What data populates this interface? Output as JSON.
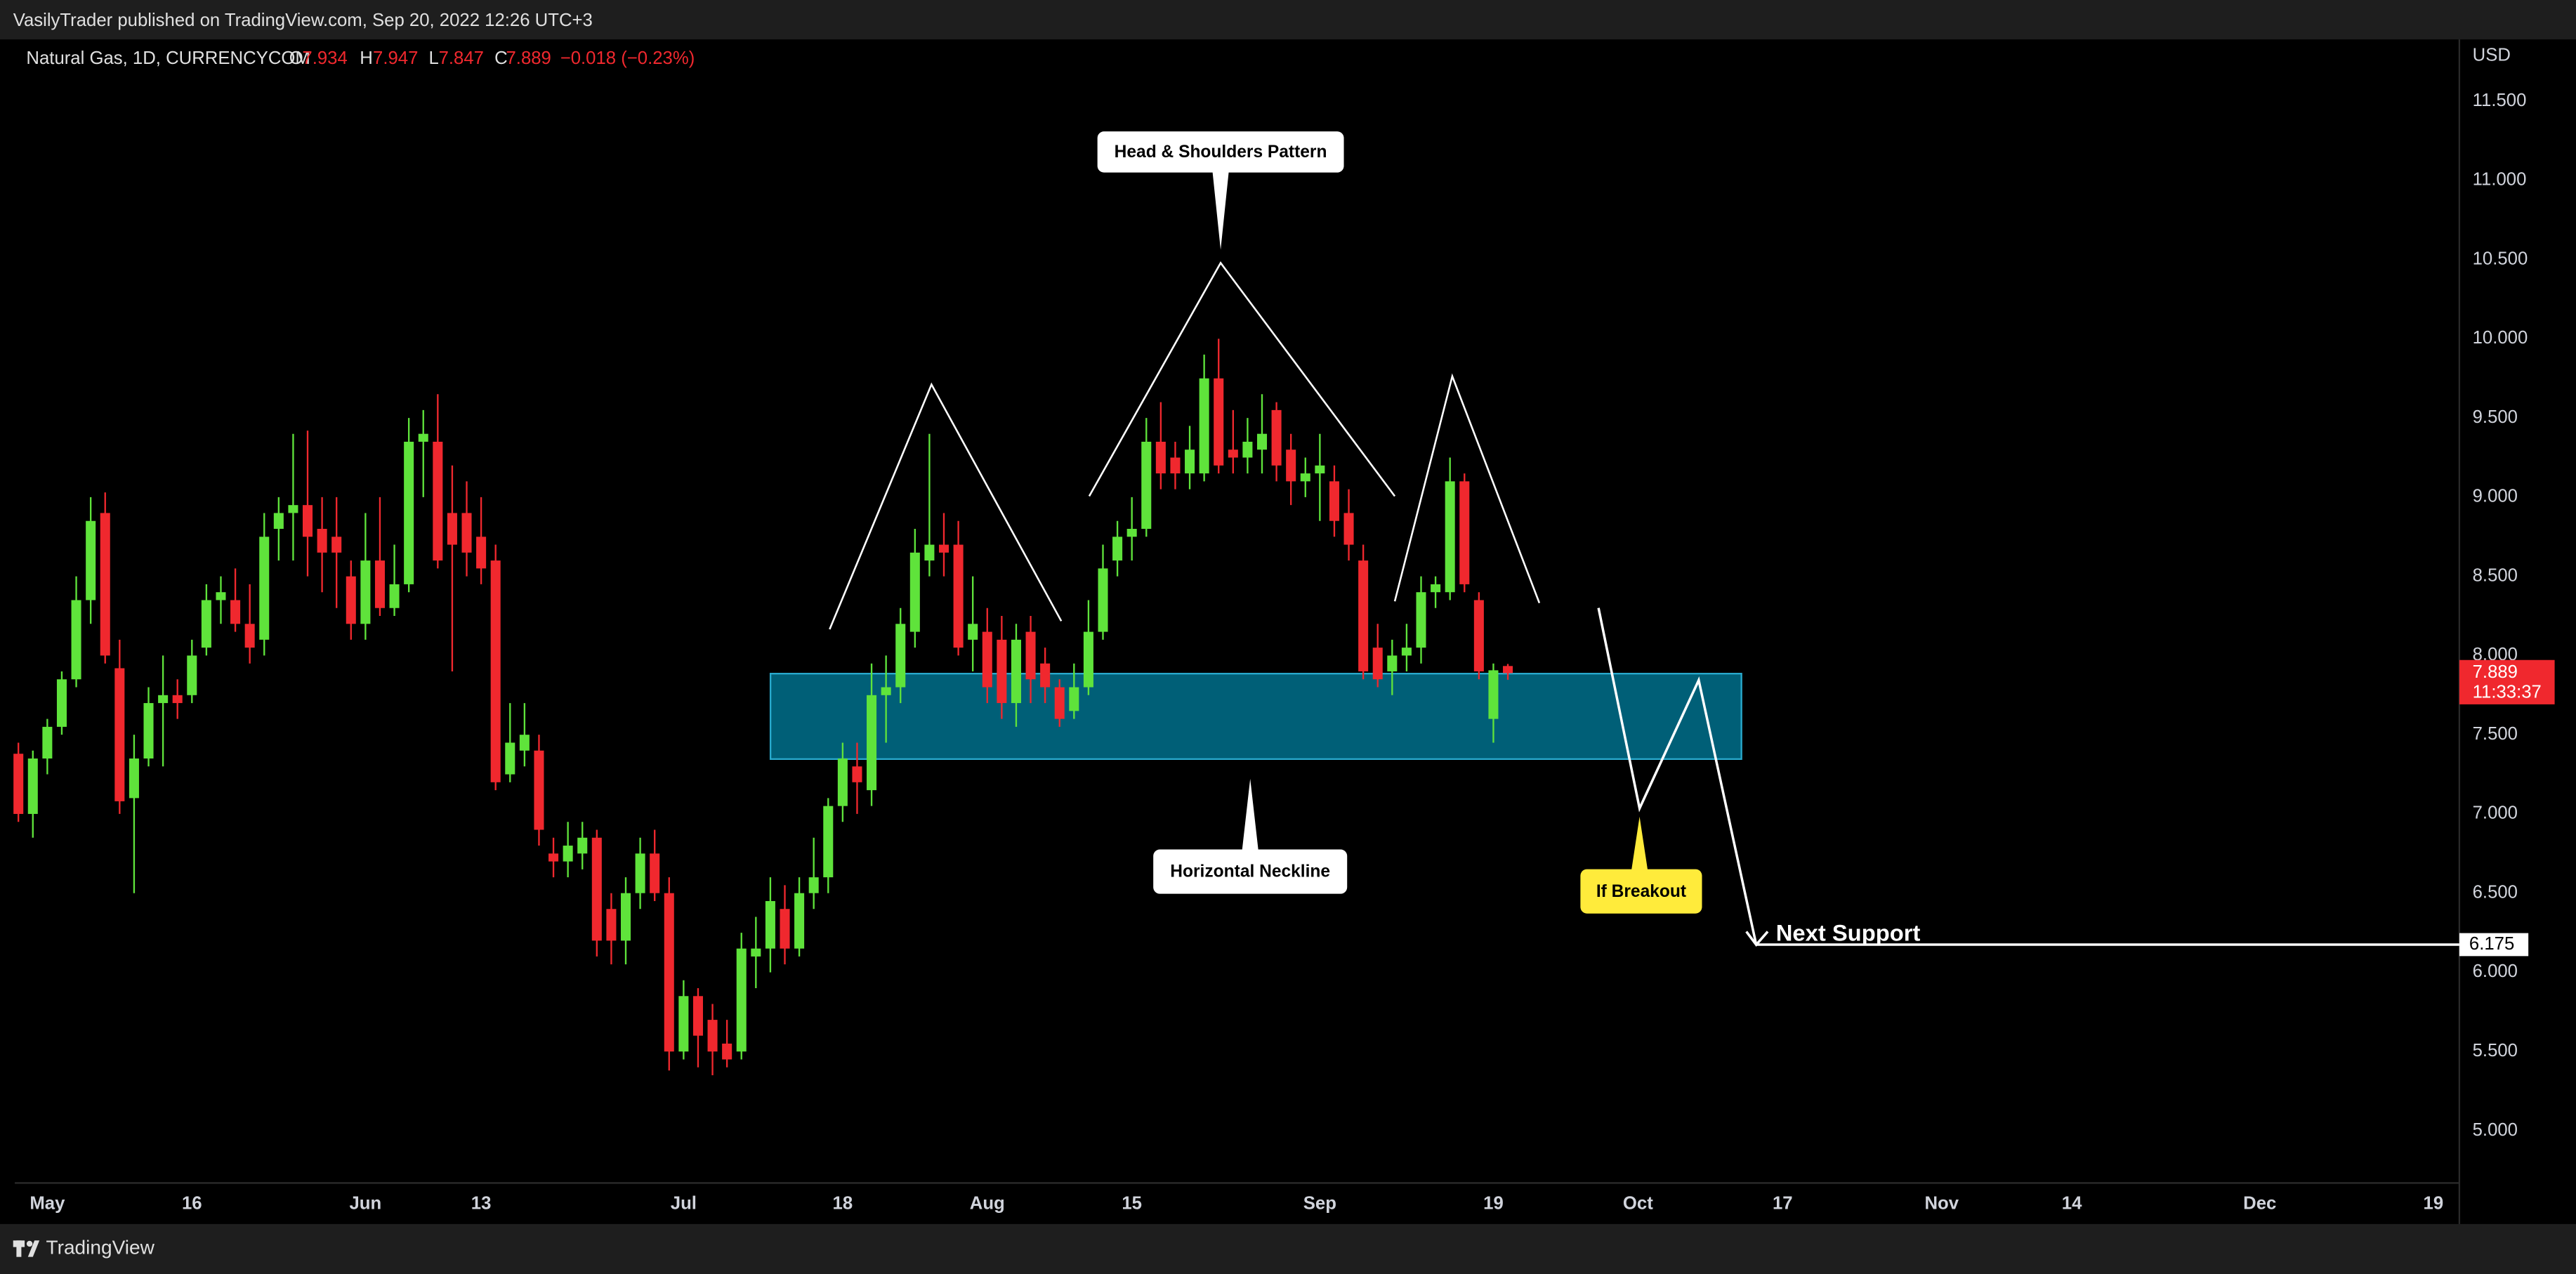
{
  "header": "VasilyTrader published on TradingView.com, Sep 20, 2022 12:26 UTC+3",
  "footer": "TradingView",
  "chart_data": {
    "type": "candlestick",
    "title": "Natural Gas, 1D, CURRENCYCOM",
    "ohlc_labels": [
      "O",
      "H",
      "L",
      "C"
    ],
    "change": "−0.018 (−0.23%)",
    "y_axis_label": "USD",
    "countdown": "11:33:37",
    "up_color": "#5fe33b",
    "down_color": "#f0282e",
    "annotations": {
      "pattern": "Head & Shoulders Pattern",
      "neckline": "Horizontal Neckline",
      "breakout": "If Breakout"
    },
    "support": {
      "label": "Next Support",
      "value": 6.175
    },
    "xlim": [
      -0.25,
      168.8
    ],
    "xticks": [
      {
        "value": 2,
        "label": "May"
      },
      {
        "value": 12,
        "label": "16"
      },
      {
        "value": 24,
        "label": "Jun"
      },
      {
        "value": 32,
        "label": "13"
      },
      {
        "value": 46,
        "label": "Jul"
      },
      {
        "value": 57,
        "label": "18"
      },
      {
        "value": 67,
        "label": "Aug"
      },
      {
        "value": 77,
        "label": "15"
      },
      {
        "value": 90,
        "label": "Sep"
      },
      {
        "value": 102,
        "label": "19"
      },
      {
        "value": 112,
        "label": "Oct"
      },
      {
        "value": 122,
        "label": "17"
      },
      {
        "value": 133,
        "label": "Nov"
      },
      {
        "value": 142,
        "label": "14"
      },
      {
        "value": 155,
        "label": "Dec"
      },
      {
        "value": 167,
        "label": "19"
      }
    ],
    "ylim": [
      4.67,
      11.89
    ],
    "yticks": [
      {
        "value": 5,
        "label": "5.000"
      },
      {
        "value": 5.5,
        "label": "5.500"
      },
      {
        "value": 6,
        "label": "6.000"
      },
      {
        "value": 6.5,
        "label": "6.500"
      },
      {
        "value": 7,
        "label": "7.000"
      },
      {
        "value": 7.5,
        "label": "7.500"
      },
      {
        "value": 8,
        "label": "8.000"
      },
      {
        "value": 8.5,
        "label": "8.500"
      },
      {
        "value": 9,
        "label": "9.000"
      },
      {
        "value": 9.5,
        "label": "9.500"
      },
      {
        "value": 10,
        "label": "10.000"
      },
      {
        "value": 10.5,
        "label": "10.500"
      },
      {
        "value": 11,
        "label": "11.000"
      },
      {
        "value": 11.5,
        "label": "11.500"
      }
    ],
    "candles": [
      {
        "open": 7.38,
        "high": 7.45,
        "low": 6.95,
        "close": 7.0
      },
      {
        "open": 7.0,
        "high": 7.4,
        "low": 6.85,
        "close": 7.35
      },
      {
        "open": 7.35,
        "high": 7.6,
        "low": 7.25,
        "close": 7.55
      },
      {
        "open": 7.55,
        "high": 7.9,
        "low": 7.5,
        "close": 7.85
      },
      {
        "open": 7.85,
        "high": 8.5,
        "low": 7.8,
        "close": 8.35
      },
      {
        "open": 8.35,
        "high": 9.0,
        "low": 8.2,
        "close": 8.85
      },
      {
        "open": 8.9,
        "high": 9.03,
        "low": 7.95,
        "close": 8.0
      },
      {
        "open": 7.92,
        "high": 8.1,
        "low": 7.0,
        "close": 7.08
      },
      {
        "open": 7.1,
        "high": 7.5,
        "low": 6.5,
        "close": 7.35
      },
      {
        "open": 7.35,
        "high": 7.8,
        "low": 7.3,
        "close": 7.7
      },
      {
        "open": 7.7,
        "high": 8.0,
        "low": 7.3,
        "close": 7.75
      },
      {
        "open": 7.75,
        "high": 7.85,
        "low": 7.6,
        "close": 7.7
      },
      {
        "open": 7.75,
        "high": 8.1,
        "low": 7.7,
        "close": 8.0
      },
      {
        "open": 8.05,
        "high": 8.45,
        "low": 8.0,
        "close": 8.35
      },
      {
        "open": 8.35,
        "high": 8.5,
        "low": 8.2,
        "close": 8.4
      },
      {
        "open": 8.35,
        "high": 8.55,
        "low": 8.15,
        "close": 8.2
      },
      {
        "open": 8.2,
        "high": 8.45,
        "low": 7.95,
        "close": 8.05
      },
      {
        "open": 8.1,
        "high": 8.9,
        "low": 8.0,
        "close": 8.75
      },
      {
        "open": 8.8,
        "high": 9.0,
        "low": 8.6,
        "close": 8.9
      },
      {
        "open": 8.9,
        "high": 9.4,
        "low": 8.6,
        "close": 8.95
      },
      {
        "open": 8.95,
        "high": 9.42,
        "low": 8.5,
        "close": 8.75
      },
      {
        "open": 8.8,
        "high": 9.0,
        "low": 8.4,
        "close": 8.65
      },
      {
        "open": 8.75,
        "high": 9.0,
        "low": 8.3,
        "close": 8.65
      },
      {
        "open": 8.5,
        "high": 8.6,
        "low": 8.1,
        "close": 8.2
      },
      {
        "open": 8.2,
        "high": 8.9,
        "low": 8.1,
        "close": 8.6
      },
      {
        "open": 8.6,
        "high": 9.0,
        "low": 8.25,
        "close": 8.3
      },
      {
        "open": 8.3,
        "high": 8.7,
        "low": 8.25,
        "close": 8.45
      },
      {
        "open": 8.45,
        "high": 9.5,
        "low": 8.4,
        "close": 9.35
      },
      {
        "open": 9.35,
        "high": 9.55,
        "low": 9.0,
        "close": 9.4
      },
      {
        "open": 9.35,
        "high": 9.65,
        "low": 8.55,
        "close": 8.6
      },
      {
        "open": 8.9,
        "high": 9.2,
        "low": 7.9,
        "close": 8.7
      },
      {
        "open": 8.9,
        "high": 9.1,
        "low": 8.5,
        "close": 8.65
      },
      {
        "open": 8.75,
        "high": 9.0,
        "low": 8.45,
        "close": 8.55
      },
      {
        "open": 8.6,
        "high": 8.7,
        "low": 7.15,
        "close": 7.2
      },
      {
        "open": 7.25,
        "high": 7.7,
        "low": 7.2,
        "close": 7.45
      },
      {
        "open": 7.4,
        "high": 7.7,
        "low": 7.3,
        "close": 7.5
      },
      {
        "open": 7.4,
        "high": 7.5,
        "low": 6.8,
        "close": 6.9
      },
      {
        "open": 6.75,
        "high": 6.85,
        "low": 6.6,
        "close": 6.7
      },
      {
        "open": 6.7,
        "high": 6.95,
        "low": 6.6,
        "close": 6.8
      },
      {
        "open": 6.75,
        "high": 6.95,
        "low": 6.65,
        "close": 6.85
      },
      {
        "open": 6.85,
        "high": 6.9,
        "low": 6.1,
        "close": 6.2
      },
      {
        "open": 6.4,
        "high": 6.5,
        "low": 6.05,
        "close": 6.2
      },
      {
        "open": 6.2,
        "high": 6.6,
        "low": 6.05,
        "close": 6.5
      },
      {
        "open": 6.5,
        "high": 6.85,
        "low": 6.4,
        "close": 6.75
      },
      {
        "open": 6.75,
        "high": 6.9,
        "low": 6.45,
        "close": 6.5
      },
      {
        "open": 6.5,
        "high": 6.6,
        "low": 5.38,
        "close": 5.5
      },
      {
        "open": 5.5,
        "high": 5.95,
        "low": 5.45,
        "close": 5.85
      },
      {
        "open": 5.85,
        "high": 5.9,
        "low": 5.4,
        "close": 5.6
      },
      {
        "open": 5.7,
        "high": 5.8,
        "low": 5.35,
        "close": 5.5
      },
      {
        "open": 5.55,
        "high": 5.7,
        "low": 5.4,
        "close": 5.45
      },
      {
        "open": 5.5,
        "high": 6.25,
        "low": 5.45,
        "close": 6.15
      },
      {
        "open": 6.1,
        "high": 6.35,
        "low": 5.9,
        "close": 6.15
      },
      {
        "open": 6.15,
        "high": 6.6,
        "low": 6.0,
        "close": 6.45
      },
      {
        "open": 6.4,
        "high": 6.55,
        "low": 6.05,
        "close": 6.15
      },
      {
        "open": 6.15,
        "high": 6.6,
        "low": 6.1,
        "close": 6.5
      },
      {
        "open": 6.5,
        "high": 6.85,
        "low": 6.4,
        "close": 6.6
      },
      {
        "open": 6.6,
        "high": 7.1,
        "low": 6.5,
        "close": 7.05
      },
      {
        "open": 7.05,
        "high": 7.45,
        "low": 6.95,
        "close": 7.35
      },
      {
        "open": 7.3,
        "high": 7.45,
        "low": 7.0,
        "close": 7.2
      },
      {
        "open": 7.15,
        "high": 7.95,
        "low": 7.05,
        "close": 7.75
      },
      {
        "open": 7.75,
        "high": 8.0,
        "low": 7.45,
        "close": 7.8
      },
      {
        "open": 7.8,
        "high": 8.3,
        "low": 7.7,
        "close": 8.2
      },
      {
        "open": 8.15,
        "high": 8.8,
        "low": 8.05,
        "close": 8.65
      },
      {
        "open": 8.6,
        "high": 9.4,
        "low": 8.5,
        "close": 8.7
      },
      {
        "open": 8.7,
        "high": 8.9,
        "low": 8.5,
        "close": 8.65
      },
      {
        "open": 8.7,
        "high": 8.85,
        "low": 8.0,
        "close": 8.05
      },
      {
        "open": 8.1,
        "high": 8.5,
        "low": 7.9,
        "close": 8.2
      },
      {
        "open": 8.15,
        "high": 8.3,
        "low": 7.7,
        "close": 7.8
      },
      {
        "open": 8.1,
        "high": 8.25,
        "low": 7.6,
        "close": 7.7
      },
      {
        "open": 7.7,
        "high": 8.2,
        "low": 7.55,
        "close": 8.1
      },
      {
        "open": 8.15,
        "high": 8.25,
        "low": 7.7,
        "close": 7.85
      },
      {
        "open": 7.95,
        "high": 8.05,
        "low": 7.7,
        "close": 7.8
      },
      {
        "open": 7.8,
        "high": 7.85,
        "low": 7.55,
        "close": 7.6
      },
      {
        "open": 7.65,
        "high": 7.95,
        "low": 7.6,
        "close": 7.8
      },
      {
        "open": 7.8,
        "high": 8.35,
        "low": 7.75,
        "close": 8.15
      },
      {
        "open": 8.15,
        "high": 8.7,
        "low": 8.1,
        "close": 8.55
      },
      {
        "open": 8.6,
        "high": 8.85,
        "low": 8.5,
        "close": 8.75
      },
      {
        "open": 8.75,
        "high": 9.0,
        "low": 8.6,
        "close": 8.8
      },
      {
        "open": 8.8,
        "high": 9.5,
        "low": 8.75,
        "close": 9.35
      },
      {
        "open": 9.35,
        "high": 9.6,
        "low": 9.05,
        "close": 9.15
      },
      {
        "open": 9.25,
        "high": 9.35,
        "low": 9.05,
        "close": 9.15
      },
      {
        "open": 9.15,
        "high": 9.45,
        "low": 9.05,
        "close": 9.3
      },
      {
        "open": 9.15,
        "high": 9.9,
        "low": 9.1,
        "close": 9.75
      },
      {
        "open": 9.75,
        "high": 10.0,
        "low": 9.15,
        "close": 9.2
      },
      {
        "open": 9.3,
        "high": 9.55,
        "low": 9.15,
        "close": 9.25
      },
      {
        "open": 9.25,
        "high": 9.5,
        "low": 9.15,
        "close": 9.35
      },
      {
        "open": 9.3,
        "high": 9.65,
        "low": 9.15,
        "close": 9.4
      },
      {
        "open": 9.55,
        "high": 9.6,
        "low": 9.1,
        "close": 9.2
      },
      {
        "open": 9.3,
        "high": 9.4,
        "low": 8.95,
        "close": 9.1
      },
      {
        "open": 9.1,
        "high": 9.25,
        "low": 9.0,
        "close": 9.15
      },
      {
        "open": 9.15,
        "high": 9.4,
        "low": 8.85,
        "close": 9.2
      },
      {
        "open": 9.1,
        "high": 9.2,
        "low": 8.75,
        "close": 8.85
      },
      {
        "open": 8.9,
        "high": 9.05,
        "low": 8.6,
        "close": 8.7
      },
      {
        "open": 8.6,
        "high": 8.7,
        "low": 7.85,
        "close": 7.9
      },
      {
        "open": 8.05,
        "high": 8.2,
        "low": 7.8,
        "close": 7.85
      },
      {
        "open": 7.9,
        "high": 8.1,
        "low": 7.75,
        "close": 8.0
      },
      {
        "open": 8.0,
        "high": 8.2,
        "low": 7.9,
        "close": 8.05
      },
      {
        "open": 8.05,
        "high": 8.5,
        "low": 7.95,
        "close": 8.4
      },
      {
        "open": 8.4,
        "high": 8.5,
        "low": 8.3,
        "close": 8.45
      },
      {
        "open": 8.4,
        "high": 9.25,
        "low": 8.35,
        "close": 9.1
      },
      {
        "open": 9.1,
        "high": 9.15,
        "low": 8.4,
        "close": 8.45
      },
      {
        "open": 8.35,
        "high": 8.4,
        "low": 7.85,
        "close": 7.9
      },
      {
        "open": 7.6,
        "high": 7.95,
        "low": 7.45,
        "close": 7.907
      },
      {
        "open": 7.934,
        "high": 7.947,
        "low": 7.847,
        "close": 7.889
      }
    ]
  }
}
